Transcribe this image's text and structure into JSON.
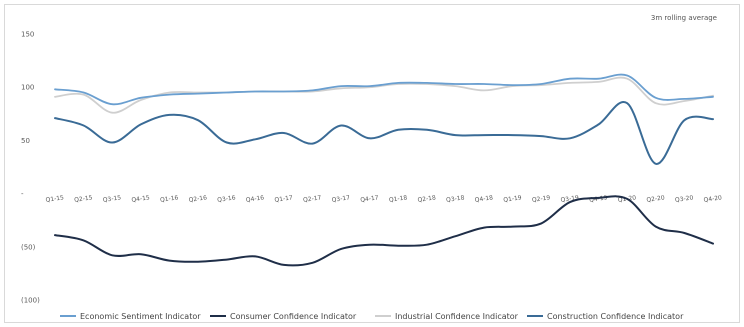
{
  "chart_data": {
    "type": "line",
    "annotation": "3m rolling average",
    "categories": [
      "Q1-15",
      "Q2-15",
      "Q3-15",
      "Q4-15",
      "Q1-16",
      "Q2-16",
      "Q3-16",
      "Q4-16",
      "Q1-17",
      "Q2-17",
      "Q3-17",
      "Q4-17",
      "Q1-18",
      "Q2-18",
      "Q3-18",
      "Q4-18",
      "Q1-19",
      "Q2-19",
      "Q3-19",
      "Q4-19",
      "Q1-20",
      "Q2-20",
      "Q3-20",
      "Q4-20"
    ],
    "y_ticks": [
      {
        "value": 150,
        "label": "150"
      },
      {
        "value": 100,
        "label": "100"
      },
      {
        "value": 50,
        "label": "50"
      },
      {
        "value": 0,
        "label": "-"
      },
      {
        "value": -50,
        "label": "(50)"
      },
      {
        "value": -100,
        "label": "(100)"
      }
    ],
    "ylim": [
      -100,
      150
    ],
    "grid": false,
    "legend_position": "bottom",
    "series": [
      {
        "name": "Economic Sentiment Indicator",
        "color": "#6a9fd0",
        "width": 1.8,
        "values": [
          98,
          95,
          84,
          90,
          93,
          94,
          95,
          96,
          96,
          97,
          101,
          101,
          104,
          104,
          103,
          103,
          102,
          103,
          108,
          108,
          111,
          90,
          89,
          91
        ]
      },
      {
        "name": "Consumer Confidence Indicator",
        "color": "#1f2e48",
        "width": 2.0,
        "values": [
          -39,
          -44,
          -58,
          -57,
          -63,
          -64,
          -62,
          -59,
          -67,
          -65,
          -52,
          -48,
          -49,
          -48,
          -40,
          -32,
          -31,
          -28,
          -8,
          -4,
          -5,
          -31,
          -37,
          -47
        ]
      },
      {
        "name": "Industrial Confidence Indicator",
        "color": "#cfcfcf",
        "width": 1.8,
        "values": [
          91,
          93,
          76,
          88,
          95,
          95,
          95,
          96,
          96,
          96,
          99,
          100,
          103,
          103,
          101,
          97,
          101,
          102,
          104,
          105,
          108,
          85,
          87,
          92
        ]
      },
      {
        "name": "Construction Confidence Indicator",
        "color": "#3a6b96",
        "width": 2.0,
        "values": [
          71,
          64,
          48,
          65,
          74,
          69,
          48,
          51,
          57,
          47,
          64,
          52,
          60,
          60,
          55,
          55,
          55,
          54,
          52,
          65,
          85,
          28,
          69,
          70
        ]
      }
    ]
  }
}
